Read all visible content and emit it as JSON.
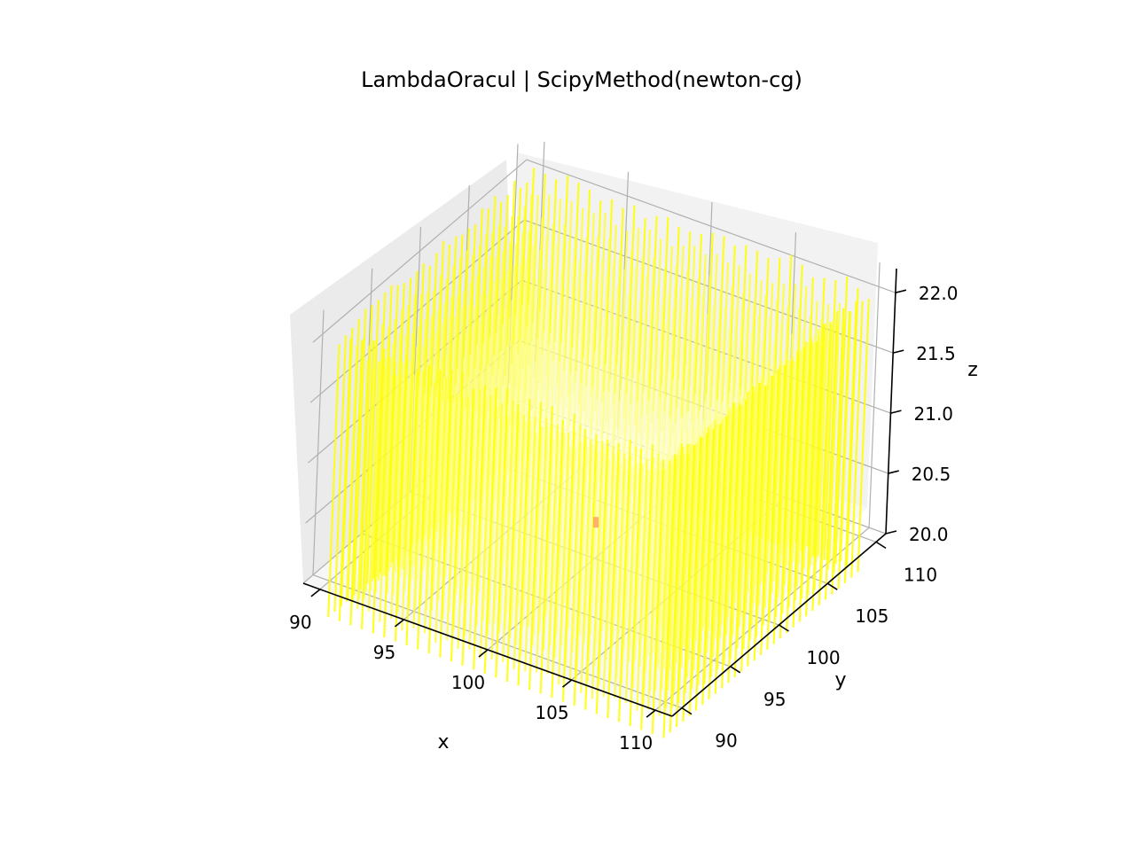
{
  "chart_data": {
    "type": "surface3d",
    "title": "LambdaOracul | ScipyMethod(newton-cg)",
    "xlabel": "x",
    "ylabel": "y",
    "zlabel": "z",
    "xlim": [
      89,
      111
    ],
    "ylim": [
      89,
      111
    ],
    "zlim": [
      20.0,
      22.2
    ],
    "xticks": [
      "90",
      "95",
      "100",
      "105",
      "110"
    ],
    "yticks": [
      "90",
      "95",
      "100",
      "105",
      "110"
    ],
    "zticks": [
      "20.0",
      "20.5",
      "21.0",
      "21.5",
      "22.0"
    ],
    "surface_color_high": "#ffff00",
    "surface_color_low": "#ffffff",
    "minimum_marker_color": "#ff9a66",
    "grid": true,
    "pane_color": "#f2f2f2",
    "grid_color": "#b0b0b0"
  }
}
